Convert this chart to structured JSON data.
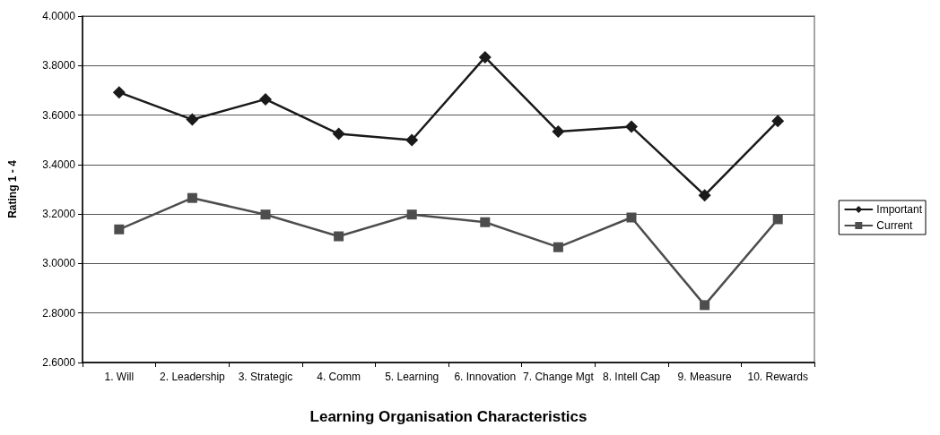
{
  "chart_data": {
    "type": "line",
    "xlabel": "Learning Organisation Characteristics",
    "ylabel": "Rating 1 - 4",
    "categories": [
      "1. Will",
      "2. Leadership",
      "3. Strategic",
      "4. Comm",
      "5. Learning",
      "6. Innovation",
      "7. Change Mgt",
      "8. Intell Cap",
      "9. Measure",
      "10. Rewards"
    ],
    "series": [
      {
        "name": "Important",
        "color": "#1a1a1a",
        "marker": "diamond",
        "values": [
          3.692,
          3.582,
          3.664,
          3.524,
          3.499,
          3.834,
          3.533,
          3.553,
          3.276,
          3.576
        ]
      },
      {
        "name": "Current",
        "color": "#4d4d4d",
        "marker": "square",
        "values": [
          3.138,
          3.265,
          3.198,
          3.11,
          3.198,
          3.167,
          3.066,
          3.186,
          2.832,
          3.179
        ]
      }
    ],
    "ylim": [
      2.6,
      4.0
    ],
    "yticks": [
      {
        "value": 2.6,
        "label": "2.6000"
      },
      {
        "value": 2.8,
        "label": "2.8000"
      },
      {
        "value": 3.0,
        "label": "3.0000"
      },
      {
        "value": 3.2,
        "label": "3.2000"
      },
      {
        "value": 3.4,
        "label": "3.4000"
      },
      {
        "value": 3.6,
        "label": "3.6000"
      },
      {
        "value": 3.8,
        "label": "3.8000"
      },
      {
        "value": 4.0,
        "label": "4.0000"
      }
    ],
    "grid": "y",
    "legend": "right",
    "line_style": "solid"
  }
}
